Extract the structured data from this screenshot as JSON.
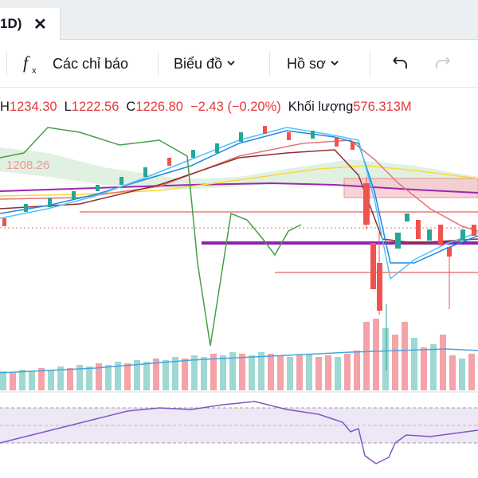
{
  "tab": {
    "label": "1D)",
    "close": "✕"
  },
  "toolbar": {
    "indicators_icon": "fx",
    "indicators_label": "Các chỉ báo",
    "chart_type_label": "Biểu đồ",
    "profile_label": "Hồ sơ",
    "undo_icon": "undo-arrow",
    "redo_icon": "redo-arrow"
  },
  "ohlc": {
    "h_label": "H",
    "h_value": "1234.30",
    "l_label": "L",
    "l_value": "1222.56",
    "c_label": "C",
    "c_value": "1226.80",
    "change": "−2.43 (−0.20%)",
    "volume_label": "Khối lượng",
    "volume_value": "576.313M"
  },
  "price_tag": "1208.26",
  "colors": {
    "up": "#26a69a",
    "down": "#ef5350",
    "text": "#131722",
    "rsi": "#7e57c2"
  }
}
